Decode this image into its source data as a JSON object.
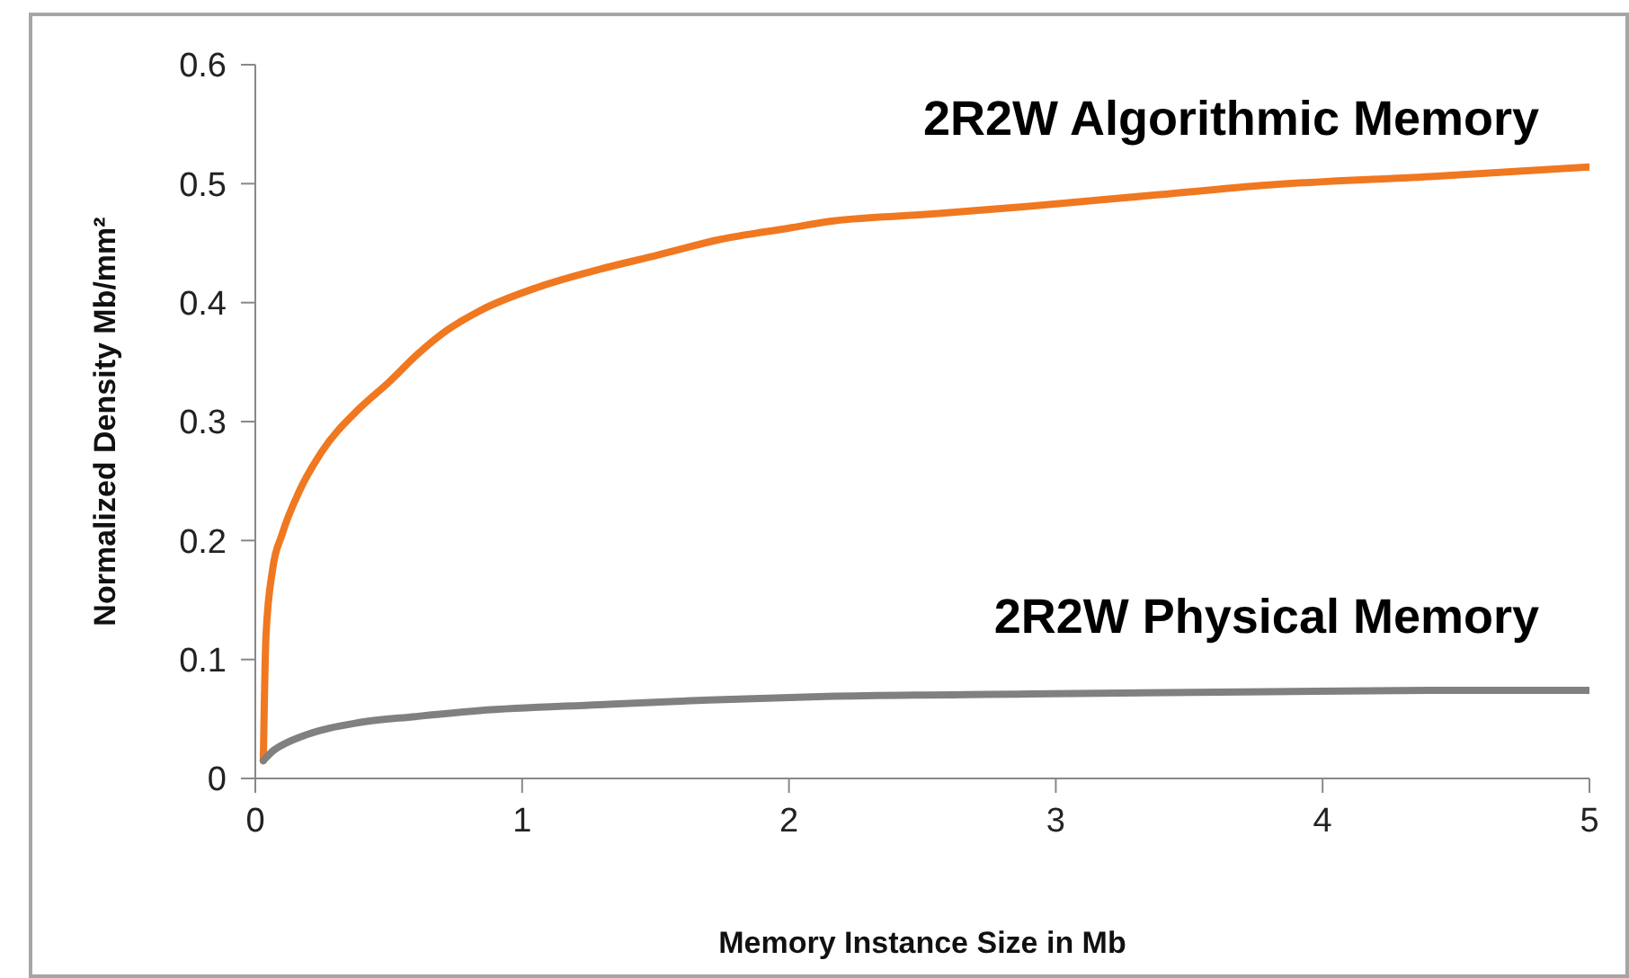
{
  "chart_data": {
    "type": "line",
    "xlabel": "Memory Instance Size in Mb",
    "ylabel": "Normalized Density Mb/mm²",
    "xlim": [
      0,
      5
    ],
    "xticks": [
      0,
      1,
      2,
      3,
      4,
      5
    ],
    "ylim": [
      0,
      0.6
    ],
    "yticks": [
      0,
      0.1,
      0.2,
      0.3,
      0.4,
      0.5,
      0.6
    ],
    "grid": false,
    "legend": false,
    "marker": "none",
    "line_style": "solid",
    "series": [
      {
        "name": "2R2W Algorithmic Memory",
        "color": "#f07820",
        "x": [
          0.03,
          0.04,
          0.065,
          0.1,
          0.166,
          0.25,
          0.39,
          0.5,
          0.61,
          0.72,
          0.84,
          1.06,
          1.29,
          1.51,
          1.74,
          2.01,
          2.14,
          2.5,
          2.9,
          3.35,
          3.8,
          4.4,
          5
        ],
        "values": [
          0.015,
          0.12,
          0.176,
          0.205,
          0.242,
          0.275,
          0.311,
          0.333,
          0.357,
          0.377,
          0.393,
          0.413,
          0.428,
          0.44,
          0.453,
          0.463,
          0.468,
          0.474,
          0.481,
          0.49,
          0.499,
          0.506,
          0.514
        ]
      },
      {
        "name": "2R2W Physical Memory",
        "color": "#808080",
        "x": [
          0.03,
          0.06,
          0.1,
          0.17,
          0.39,
          0.6,
          0.84,
          1.29,
          1.7,
          2.14,
          2.9,
          3.8,
          4.4,
          5
        ],
        "values": [
          0.015,
          0.022,
          0.028,
          0.035,
          0.047,
          0.052,
          0.057,
          0.062,
          0.066,
          0.069,
          0.071,
          0.073,
          0.074,
          0.074
        ]
      }
    ]
  }
}
